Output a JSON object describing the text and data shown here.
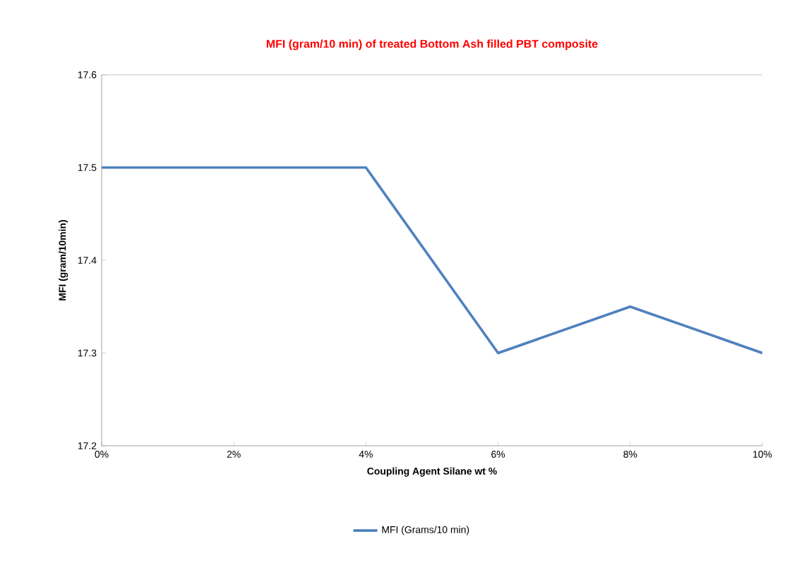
{
  "chart_data": {
    "type": "line",
    "title": "MFI (gram/10 min) of treated Bottom Ash filled PBT composite",
    "xlabel": "Coupling Agent Silane wt %",
    "ylabel": "MFI (gram/10min)",
    "x": [
      0,
      2,
      4,
      6,
      8,
      10
    ],
    "series": [
      {
        "name": "MFI (Grams/10 min)",
        "color": "#4f81bd",
        "values": [
          17.5,
          17.5,
          17.5,
          17.3,
          17.35,
          17.3
        ]
      }
    ],
    "xlim": [
      0,
      10
    ],
    "xticks": [
      {
        "value": 0,
        "label": "0%"
      },
      {
        "value": 2,
        "label": "2%"
      },
      {
        "value": 4,
        "label": "4%"
      },
      {
        "value": 6,
        "label": "6%"
      },
      {
        "value": 8,
        "label": "8%"
      },
      {
        "value": 10,
        "label": "10%"
      }
    ],
    "ylim": [
      17.2,
      17.6
    ],
    "yticks": [
      17.2,
      17.3,
      17.4,
      17.5,
      17.6
    ],
    "legend": "bottom",
    "marker": "none",
    "line_style": "solid",
    "grid": false
  }
}
